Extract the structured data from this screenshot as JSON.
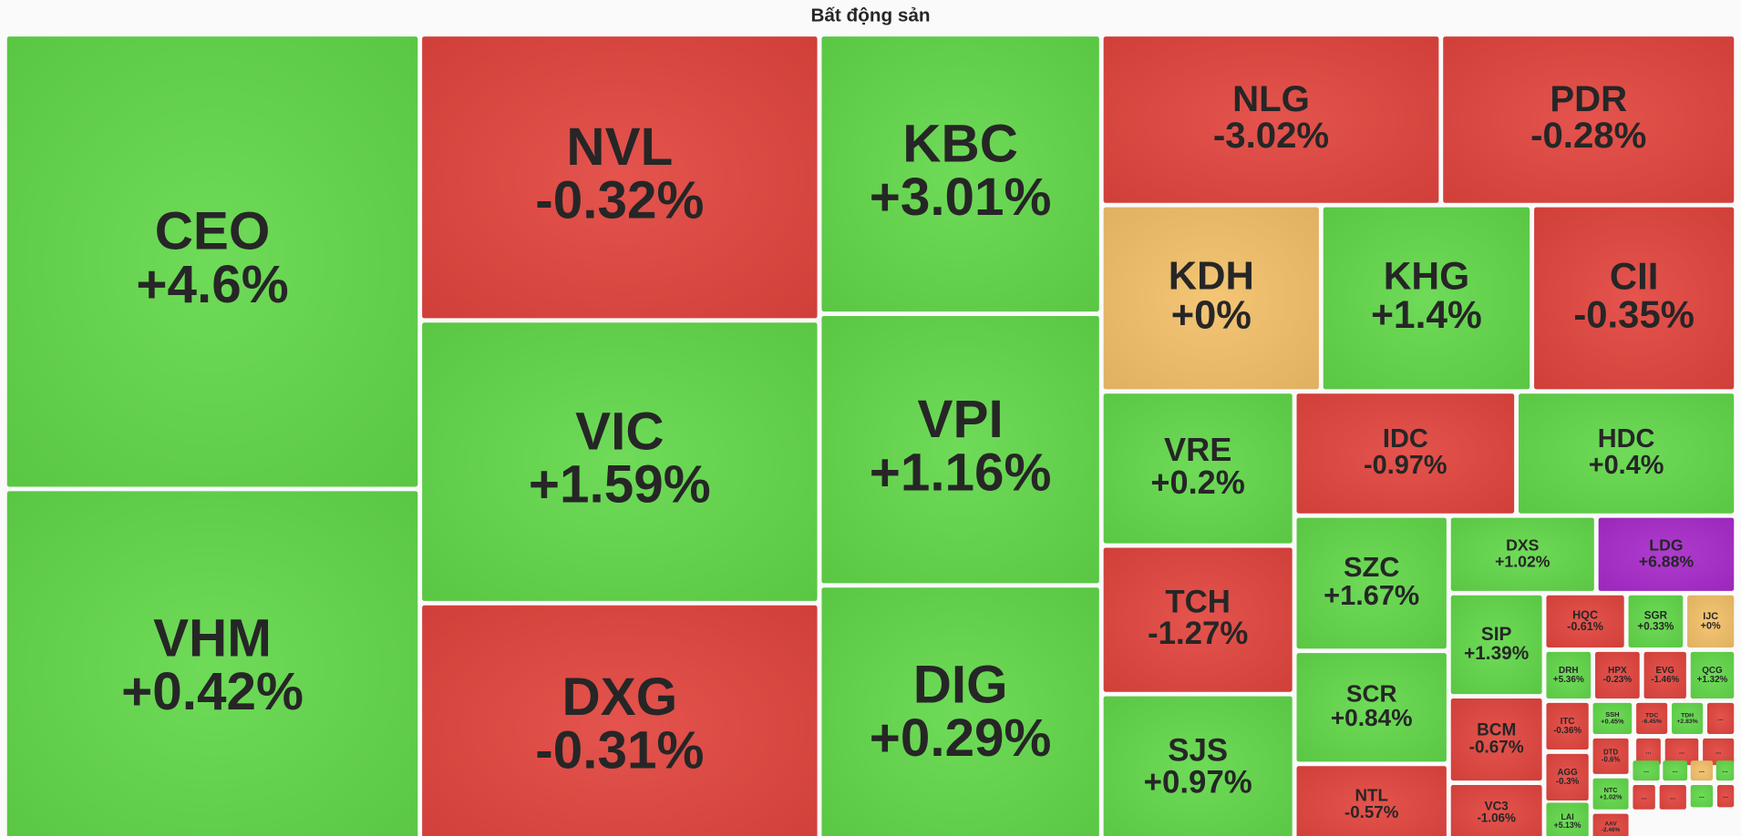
{
  "title": "Bất động sản",
  "tiles": [
    {
      "ticker": "CEO",
      "change": "+4.6%",
      "color": "#62d84a"
    },
    {
      "ticker": "VHM",
      "change": "+0.42%",
      "color": "#62d84a"
    },
    {
      "ticker": "NVL",
      "change": "-0.32%",
      "color": "#e2453e"
    },
    {
      "ticker": "VIC",
      "change": "+1.59%",
      "color": "#62d84a"
    },
    {
      "ticker": "DXG",
      "change": "-0.31%",
      "color": "#e2453e"
    },
    {
      "ticker": "KBC",
      "change": "+3.01%",
      "color": "#62d84a"
    },
    {
      "ticker": "VPI",
      "change": "+1.16%",
      "color": "#62d84a"
    },
    {
      "ticker": "DIG",
      "change": "+0.29%",
      "color": "#62d84a"
    },
    {
      "ticker": "NLG",
      "change": "-3.02%",
      "color": "#e2453e"
    },
    {
      "ticker": "PDR",
      "change": "-0.28%",
      "color": "#e2453e"
    },
    {
      "ticker": "KDH",
      "change": "+0%",
      "color": "#f2c069"
    },
    {
      "ticker": "KHG",
      "change": "+1.4%",
      "color": "#62d84a"
    },
    {
      "ticker": "CII",
      "change": "-0.35%",
      "color": "#e2453e"
    },
    {
      "ticker": "VRE",
      "change": "+0.2%",
      "color": "#62d84a"
    },
    {
      "ticker": "IDC",
      "change": "-0.97%",
      "color": "#e2453e"
    },
    {
      "ticker": "HDC",
      "change": "+0.4%",
      "color": "#62d84a"
    },
    {
      "ticker": "TCH",
      "change": "-1.27%",
      "color": "#e2453e"
    },
    {
      "ticker": "SJS",
      "change": "+0.97%",
      "color": "#62d84a"
    },
    {
      "ticker": "SZC",
      "change": "+1.67%",
      "color": "#62d84a"
    },
    {
      "ticker": "SCR",
      "change": "+0.84%",
      "color": "#62d84a"
    },
    {
      "ticker": "NTL",
      "change": "-0.57%",
      "color": "#e2453e"
    },
    {
      "ticker": "DXS",
      "change": "+1.02%",
      "color": "#62d84a"
    },
    {
      "ticker": "LDG",
      "change": "+6.88%",
      "color": "#a82bcb"
    },
    {
      "ticker": "SIP",
      "change": "+1.39%",
      "color": "#62d84a"
    },
    {
      "ticker": "BCM",
      "change": "-0.67%",
      "color": "#e2453e"
    },
    {
      "ticker": "VC3",
      "change": "-1.06%",
      "color": "#e2453e"
    },
    {
      "ticker": "HQC",
      "change": "-0.61%",
      "color": "#e2453e"
    },
    {
      "ticker": "SGR",
      "change": "+0.33%",
      "color": "#62d84a"
    },
    {
      "ticker": "IJC",
      "change": "+0%",
      "color": "#f2c069"
    },
    {
      "ticker": "DRH",
      "change": "+5.36%",
      "color": "#62d84a"
    },
    {
      "ticker": "HPX",
      "change": "-0.23%",
      "color": "#e2453e"
    },
    {
      "ticker": "EVG",
      "change": "-1.46%",
      "color": "#e2453e"
    },
    {
      "ticker": "QCG",
      "change": "+1.32%",
      "color": "#62d84a"
    },
    {
      "ticker": "ITC",
      "change": "-0.36%",
      "color": "#e2453e"
    },
    {
      "ticker": "SSH",
      "change": "+0.45%",
      "color": "#62d84a"
    },
    {
      "ticker": "TDC",
      "change": "-6.45%",
      "color": "#e2453e"
    },
    {
      "ticker": "TDH",
      "change": "+2.83%",
      "color": "#62d84a"
    },
    {
      "ticker": "AGG",
      "change": "-0.3%",
      "color": "#e2453e"
    },
    {
      "ticker": "DTD",
      "change": "-0.6%",
      "color": "#e2453e"
    },
    {
      "ticker": "NTC",
      "change": "+1.02%",
      "color": "#62d84a"
    },
    {
      "ticker": "LAI",
      "change": "+5.13%",
      "color": "#62d84a"
    },
    {
      "ticker": "AAV",
      "change": "-2.46%",
      "color": "#e2453e"
    },
    {
      "ticker": "...",
      "color": "#e2453e"
    },
    {
      "ticker": "...",
      "color": "#e2453e"
    },
    {
      "ticker": "...",
      "color": "#e2453e"
    },
    {
      "ticker": "...",
      "color": "#e2453e"
    },
    {
      "ticker": "...",
      "color": "#62d84a"
    },
    {
      "ticker": "...",
      "color": "#62d84a"
    },
    {
      "ticker": "...",
      "color": "#f2c069"
    },
    {
      "ticker": "...",
      "color": "#62d84a"
    },
    {
      "ticker": "...",
      "color": "#e2453e"
    },
    {
      "ticker": "...",
      "color": "#e2453e"
    },
    {
      "ticker": "...",
      "color": "#62d84a"
    },
    {
      "ticker": "...",
      "color": "#e2453e"
    }
  ]
}
